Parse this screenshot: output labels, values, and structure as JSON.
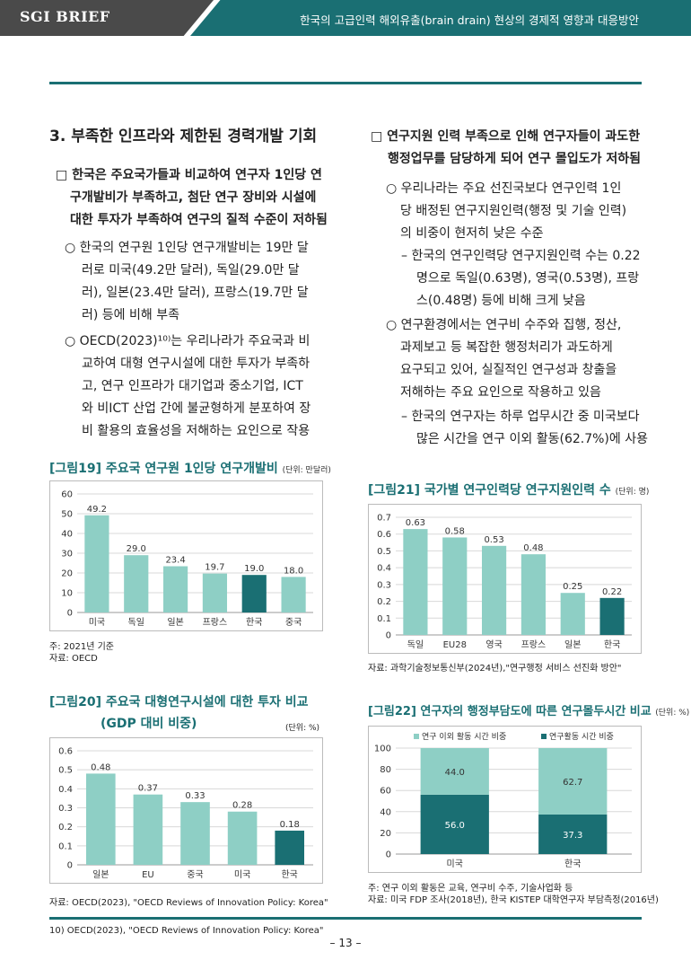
{
  "header": {
    "left": "SGI BRIEF",
    "right": "한국의 고급인력 해외유출(brain drain) 현상의 경제적 영향과 대응방안"
  },
  "left": {
    "section_title": "3. 부족한 인프라와 제한된 경력개발 기회",
    "b1": [
      "□ 한국은 주요국가들과 비교하여 연구자 1인당 연",
      "구개발비가 부족하고, 첨단 연구 장비와 시설에",
      "대한 투자가 부족하여 연구의 질적 수준이 저하됨"
    ],
    "b2": [
      "○ 한국의 연구원 1인당 연구개발비는 19만 달",
      "러로 미국(49.2만 달러), 독일(29.0만 달",
      "러), 일본(23.4만 달러), 프랑스(19.7만 달",
      "러) 등에 비해 부족"
    ],
    "b3": [
      "○ OECD(2023)¹⁰⁾는 우리나라가 주요국과 비",
      "교하여 대형 연구시설에 대한 투자가 부족하",
      "고, 연구 인프라가 대기업과 중소기업, ICT",
      "와 비ICT 산업 간에 불균형하게 분포하여 장",
      "비 활용의 효율성을 저해하는 요인으로 작용"
    ]
  },
  "right": {
    "b1": [
      "□ 연구지원 인력 부족으로 인해 연구자들이 과도한",
      "행정업무를 담당하게 되어 연구 몰입도가 저하됨"
    ],
    "b2": [
      "○ 우리나라는 주요 선진국보다 연구인력 1인",
      "당 배정된 연구지원인력(행정 및 기술 인력)",
      "의 비중이 현저히 낮은 수준"
    ],
    "b3": [
      "– 한국의 연구인력당 연구지원인력 수는 0.22",
      "명으로 독일(0.63명), 영국(0.53명), 프랑",
      "스(0.48명) 등에 비해 크게 낮음"
    ],
    "b4": [
      "○ 연구환경에서는 연구비 수주와 집행, 정산,",
      "과제보고 등 복잡한 행정처리가 과도하게",
      "요구되고 있어, 실질적인 연구성과 창출을",
      "저해하는 주요 요인으로 작용하고 있음"
    ],
    "b5": [
      "– 한국의 연구자는 하루 업무시간 중 미국보다",
      "많은 시간을 연구 이외 활동(62.7%)에 사용"
    ]
  },
  "fig19": {
    "title": "[그림19] 주요국 연구원 1인당 연구개발비",
    "unit": "(단위: 만달러)",
    "note1": "주: 2021년 기준",
    "note2": "자료: OECD"
  },
  "fig20": {
    "title1": "[그림20] 주요국 대형연구시설에 대한 투자 비교",
    "title2": "(GDP 대비 비중)",
    "unit": "(단위: %)",
    "note": "자료: OECD(2023), \"OECD Reviews of Innovation Policy: Korea\""
  },
  "fig21": {
    "title": "[그림21] 국가별 연구인력당 연구지원인력 수",
    "unit": "(단위: 명)",
    "note": "자료: 과학기술정보통신부(2024년),\"연구행정 서비스 선진화 방안\""
  },
  "fig22": {
    "title": "[그림22] 연구자의 행정부담도에 따른 연구몰두시간 비교",
    "unit": "(단위: %)",
    "note1": "주: 연구 이외 활동은 교육, 연구비 수주, 기술사업화 등",
    "note2": "자료: 미국 FDP 조사(2018년), 한국 KISTEP 대학연구자 부담측정(2016년)"
  },
  "footnote": "10) OECD(2023), \"OECD Reviews of Innovation Policy: Korea\"",
  "page_number": "– 13 –",
  "colors": {
    "teal": "#1a6f73",
    "light": "#8ecfc5",
    "grid": "#d8d8d8"
  },
  "chart_data": [
    {
      "id": "fig19",
      "type": "bar",
      "categories": [
        "미국",
        "독일",
        "일본",
        "프랑스",
        "한국",
        "중국"
      ],
      "values": [
        49.2,
        29.0,
        23.4,
        19.7,
        19.0,
        18.0
      ],
      "labels": [
        "49.2",
        "29.0",
        "23.4",
        "19.7",
        "19.0",
        "18.0"
      ],
      "highlight": [
        4
      ],
      "ylim": [
        0,
        60
      ],
      "ticks": [
        "0",
        "10",
        "20",
        "30",
        "40",
        "50",
        "60"
      ]
    },
    {
      "id": "fig20",
      "type": "bar",
      "categories": [
        "일본",
        "EU",
        "중국",
        "미국",
        "한국"
      ],
      "values": [
        0.48,
        0.37,
        0.33,
        0.28,
        0.18
      ],
      "labels": [
        "0.48",
        "0.37",
        "0.33",
        "0.28",
        "0.18"
      ],
      "highlight": [
        4
      ],
      "ylim": [
        0,
        0.6
      ],
      "ticks": [
        "0",
        "0.1",
        "0.2",
        "0.3",
        "0.4",
        "0.5",
        "0.6"
      ]
    },
    {
      "id": "fig21",
      "type": "bar",
      "categories": [
        "독일",
        "EU28",
        "영국",
        "프랑스",
        "일본",
        "한국"
      ],
      "values": [
        0.63,
        0.58,
        0.53,
        0.48,
        0.25,
        0.22
      ],
      "labels": [
        "0.63",
        "0.58",
        "0.53",
        "0.48",
        "0.25",
        "0.22"
      ],
      "highlight": [
        5
      ],
      "ylim": [
        0,
        0.7
      ],
      "ticks": [
        "0",
        "0.1",
        "0.2",
        "0.3",
        "0.4",
        "0.5",
        "0.6",
        "0.7"
      ]
    },
    {
      "id": "fig22",
      "type": "bar",
      "stacked": true,
      "categories": [
        "미국",
        "한국"
      ],
      "series": [
        {
          "name": "연구활동 시간 비중",
          "values": [
            56.0,
            37.3
          ],
          "labels": [
            "56.0",
            "37.3"
          ]
        },
        {
          "name": "연구 이외 활동 시간 비중",
          "values": [
            44.0,
            62.7
          ],
          "labels": [
            "44.0",
            "62.7"
          ]
        }
      ],
      "legend": [
        "연구 이외 활동 시간 비중",
        "연구활동 시간 비중"
      ],
      "ylim": [
        0,
        100
      ],
      "ticks": [
        "0",
        "20",
        "40",
        "60",
        "80",
        "100"
      ]
    }
  ]
}
